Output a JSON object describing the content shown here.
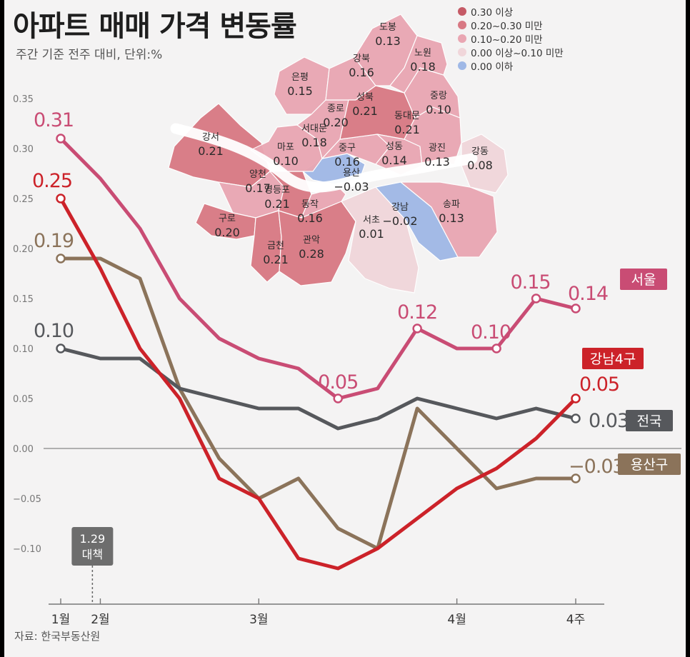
{
  "header": {
    "title": "아파트 매매 가격 변동률",
    "subtitle": "주간 기준 전주 대비, 단위:%"
  },
  "footer": {
    "source": "자료: 한국부동산원"
  },
  "map": {
    "legend": [
      {
        "label": "0.30 이상",
        "color": "#c55a66"
      },
      {
        "label": "0.20~0.30 미만",
        "color": "#d87883"
      },
      {
        "label": "0.10~0.20 미만",
        "color": "#e9a6b2"
      },
      {
        "label": "0.00 이상~0.10 미만",
        "color": "#f0d6da"
      },
      {
        "label": "0.00 이하",
        "color": "#9fb8e6"
      }
    ],
    "districts": [
      {
        "name": "도봉",
        "value": "0.13"
      },
      {
        "name": "강북",
        "value": "0.16"
      },
      {
        "name": "노원",
        "value": "0.18"
      },
      {
        "name": "은평",
        "value": "0.15"
      },
      {
        "name": "성북",
        "value": "0.21"
      },
      {
        "name": "중랑",
        "value": "0.10"
      },
      {
        "name": "종로",
        "value": "0.20"
      },
      {
        "name": "동대문",
        "value": "0.21"
      },
      {
        "name": "서대문",
        "value": "0.18"
      },
      {
        "name": "강서",
        "value": "0.21"
      },
      {
        "name": "마포",
        "value": "0.10"
      },
      {
        "name": "중구",
        "value": "0.16"
      },
      {
        "name": "성동",
        "value": "0.14"
      },
      {
        "name": "광진",
        "value": "0.13"
      },
      {
        "name": "강동",
        "value": "0.08"
      },
      {
        "name": "양천",
        "value": "0.17"
      },
      {
        "name": "용산",
        "value": "-0.03"
      },
      {
        "name": "영등포",
        "value": "0.21"
      },
      {
        "name": "구로",
        "value": "0.20"
      },
      {
        "name": "동작",
        "value": "0.16"
      },
      {
        "name": "서초",
        "value": "0.01"
      },
      {
        "name": "강남",
        "value": "-0.02"
      },
      {
        "name": "송파",
        "value": "0.13"
      },
      {
        "name": "금천",
        "value": "0.21"
      },
      {
        "name": "관악",
        "value": "0.28"
      }
    ]
  },
  "chart_data": {
    "type": "line",
    "title": "아파트 매매 가격 변동률",
    "subtitle": "주간 기준 전주 대비, 단위:%",
    "ylim": [
      -0.15,
      0.35
    ],
    "y_ticks": [
      "0.35",
      "0.30",
      "0.25",
      "0.20",
      "0.15",
      "0.10",
      "0.05",
      "0.00",
      "-0.05",
      "-0.10"
    ],
    "x_ticks": [
      "1월",
      "2월",
      "3월",
      "4월",
      "4주"
    ],
    "x_tick_weeks": [
      1,
      2,
      6,
      11,
      14
    ],
    "weeks": [
      1,
      2,
      3,
      4,
      5,
      6,
      7,
      8,
      9,
      10,
      11,
      12,
      13,
      14
    ],
    "grid": false,
    "annotation": {
      "text_line1": "1.29",
      "text_line2": "대책",
      "week": 1.8
    },
    "series": [
      {
        "name": "서울",
        "color": "#c94c74",
        "values": [
          0.31,
          0.27,
          0.22,
          0.15,
          0.11,
          0.09,
          0.08,
          0.05,
          0.06,
          0.12,
          0.1,
          0.1,
          0.15,
          0.14
        ],
        "labels": [
          {
            "index": 0,
            "text": "0.31"
          },
          {
            "index": 7,
            "text": "0.05"
          },
          {
            "index": 9,
            "text": "0.12"
          },
          {
            "index": 11,
            "text": "0.10"
          },
          {
            "index": 12,
            "text": "0.15"
          },
          {
            "index": 13,
            "text": "0.14"
          }
        ]
      },
      {
        "name": "강남4구",
        "color": "#cc2229",
        "values": [
          0.25,
          0.18,
          0.1,
          0.05,
          -0.03,
          -0.05,
          -0.11,
          -0.12,
          -0.1,
          -0.07,
          -0.04,
          -0.02,
          0.01,
          0.05
        ],
        "labels": [
          {
            "index": 0,
            "text": "0.25"
          },
          {
            "index": 13,
            "text": "0.05"
          }
        ]
      },
      {
        "name": "전국",
        "color": "#56585c",
        "values": [
          0.1,
          0.09,
          0.09,
          0.06,
          0.05,
          0.04,
          0.04,
          0.02,
          0.03,
          0.05,
          0.04,
          0.03,
          0.04,
          0.03
        ],
        "labels": [
          {
            "index": 0,
            "text": "0.10"
          },
          {
            "index": 13,
            "text": "0.03"
          }
        ]
      },
      {
        "name": "용산구",
        "color": "#8b735a",
        "values": [
          0.19,
          0.19,
          0.17,
          0.06,
          -0.01,
          -0.05,
          -0.03,
          -0.08,
          -0.1,
          0.04,
          0.0,
          -0.04,
          -0.03,
          -0.03
        ],
        "labels": [
          {
            "index": 0,
            "text": "0.19"
          },
          {
            "index": 13,
            "text": "-0.03"
          }
        ]
      }
    ]
  }
}
